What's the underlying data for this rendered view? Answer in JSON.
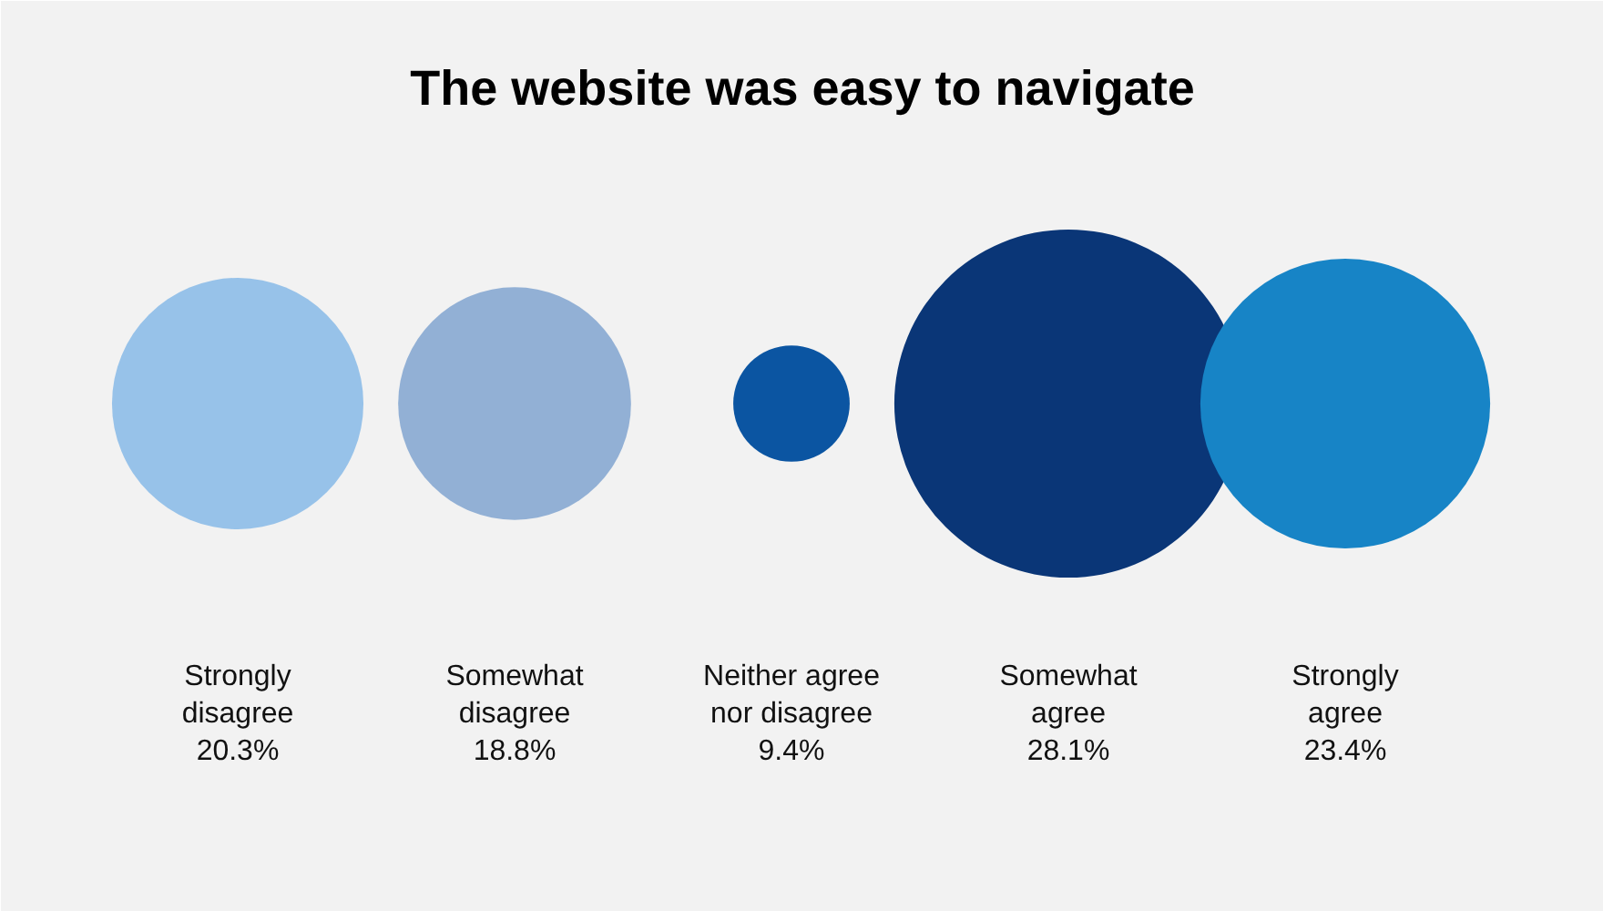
{
  "chart_data": {
    "type": "other",
    "title": "The website was easy to navigate",
    "categories": [
      "Strongly disagree",
      "Somewhat disagree",
      "Neither agree nor disagree",
      "Somewhat agree",
      "Strongly agree"
    ],
    "values": [
      20.3,
      18.8,
      9.4,
      28.1,
      23.4
    ],
    "colors": [
      "#97c2e9",
      "#92b0d5",
      "#0b55a2",
      "#0a3677",
      "#1784c6"
    ],
    "value_labels": [
      "20.3%",
      "18.8%",
      "9.4%",
      "28.1%",
      "23.4%"
    ]
  }
}
